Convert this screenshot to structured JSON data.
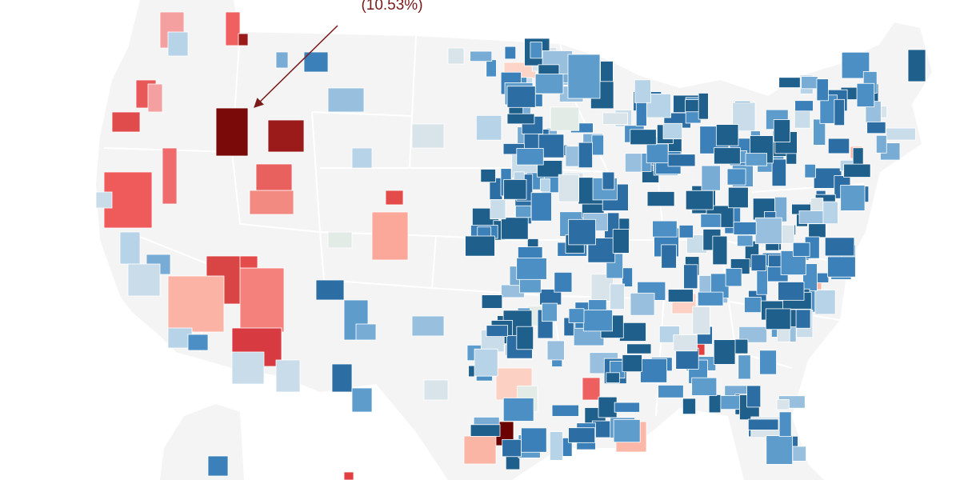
{
  "annotation": {
    "label": "(10.53%)"
  }
}
